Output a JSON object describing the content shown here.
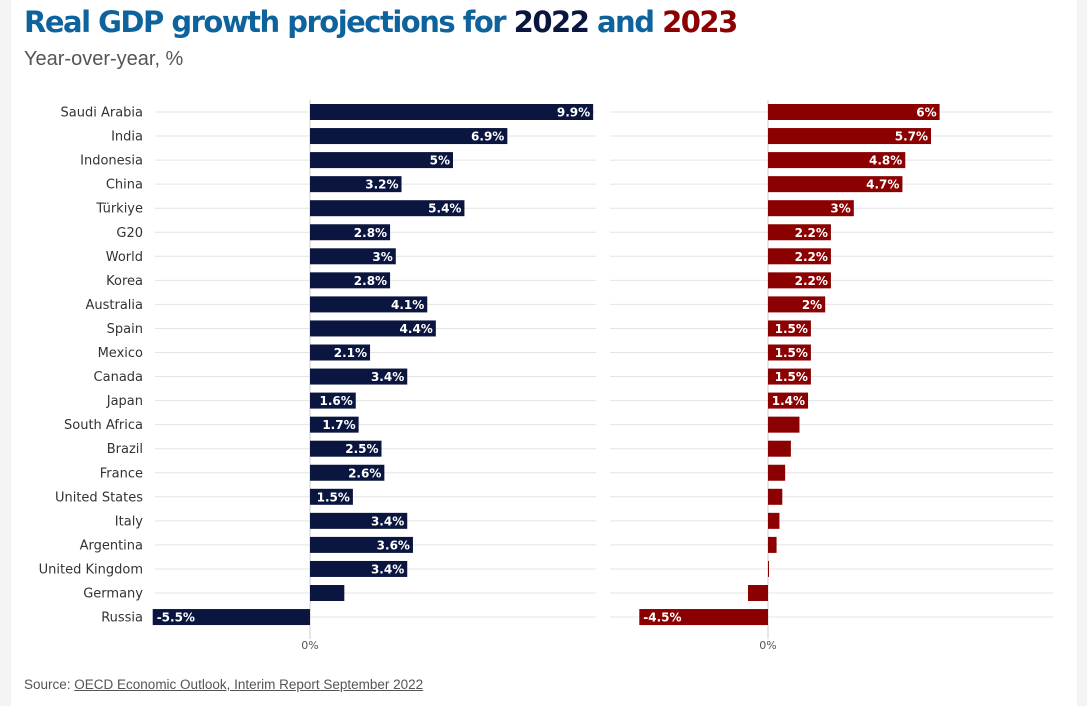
{
  "title": {
    "prefix": "Real GDP growth projections for ",
    "year1": "2022",
    "conj": " and ",
    "year2": "2023"
  },
  "subtitle": "Year-over-year, %",
  "source": {
    "label": "Source: ",
    "link_text": "OECD Economic Outlook, Interim Report September 2022"
  },
  "colors": {
    "title": "#0e639c",
    "series_2022": "#0b1640",
    "series_2023": "#8b0000"
  },
  "chart_data": {
    "type": "bar",
    "orientation": "horizontal",
    "title": "Real GDP growth projections for 2022 and 2023",
    "subtitle": "Year-over-year, %",
    "zero_tick_label": "0%",
    "categories": [
      "Saudi Arabia",
      "India",
      "Indonesia",
      "China",
      "Türkiye",
      "G20",
      "World",
      "Korea",
      "Australia",
      "Spain",
      "Mexico",
      "Canada",
      "Japan",
      "South Africa",
      "Brazil",
      "France",
      "United States",
      "Italy",
      "Argentina",
      "United Kingdom",
      "Germany",
      "Russia"
    ],
    "series": [
      {
        "name": "2022",
        "color": "#0b1640",
        "values": [
          9.9,
          6.9,
          5,
          3.2,
          5.4,
          2.8,
          3,
          2.8,
          4.1,
          4.4,
          2.1,
          3.4,
          1.6,
          1.7,
          2.5,
          2.6,
          1.5,
          3.4,
          3.6,
          3.4,
          1.2,
          -5.5
        ],
        "labels": [
          "9.9%",
          "6.9%",
          "5%",
          "3.2%",
          "5.4%",
          "2.8%",
          "3%",
          "2.8%",
          "4.1%",
          "4.4%",
          "2.1%",
          "3.4%",
          "1.6%",
          "1.7%",
          "2.5%",
          "2.6%",
          "1.5%",
          "3.4%",
          "3.6%",
          "3.4%",
          "",
          "-5.5%"
        ]
      },
      {
        "name": "2023",
        "color": "#8b0000",
        "values": [
          6,
          5.7,
          4.8,
          4.7,
          3,
          2.2,
          2.2,
          2.2,
          2,
          1.5,
          1.5,
          1.5,
          1.4,
          1.1,
          0.8,
          0.6,
          0.5,
          0.4,
          0.3,
          0,
          -0.7,
          -4.5
        ],
        "labels": [
          "6%",
          "5.7%",
          "4.8%",
          "4.7%",
          "3%",
          "2.2%",
          "2.2%",
          "2.2%",
          "2%",
          "1.5%",
          "1.5%",
          "1.5%",
          "1.4%",
          "",
          "",
          "",
          "",
          "",
          "",
          "",
          "",
          "-4.5%"
        ]
      }
    ],
    "xlim_2022": [
      -5.5,
      10
    ],
    "xlim_2023": [
      -4.5,
      10
    ],
    "grid": true,
    "legend": "none"
  }
}
